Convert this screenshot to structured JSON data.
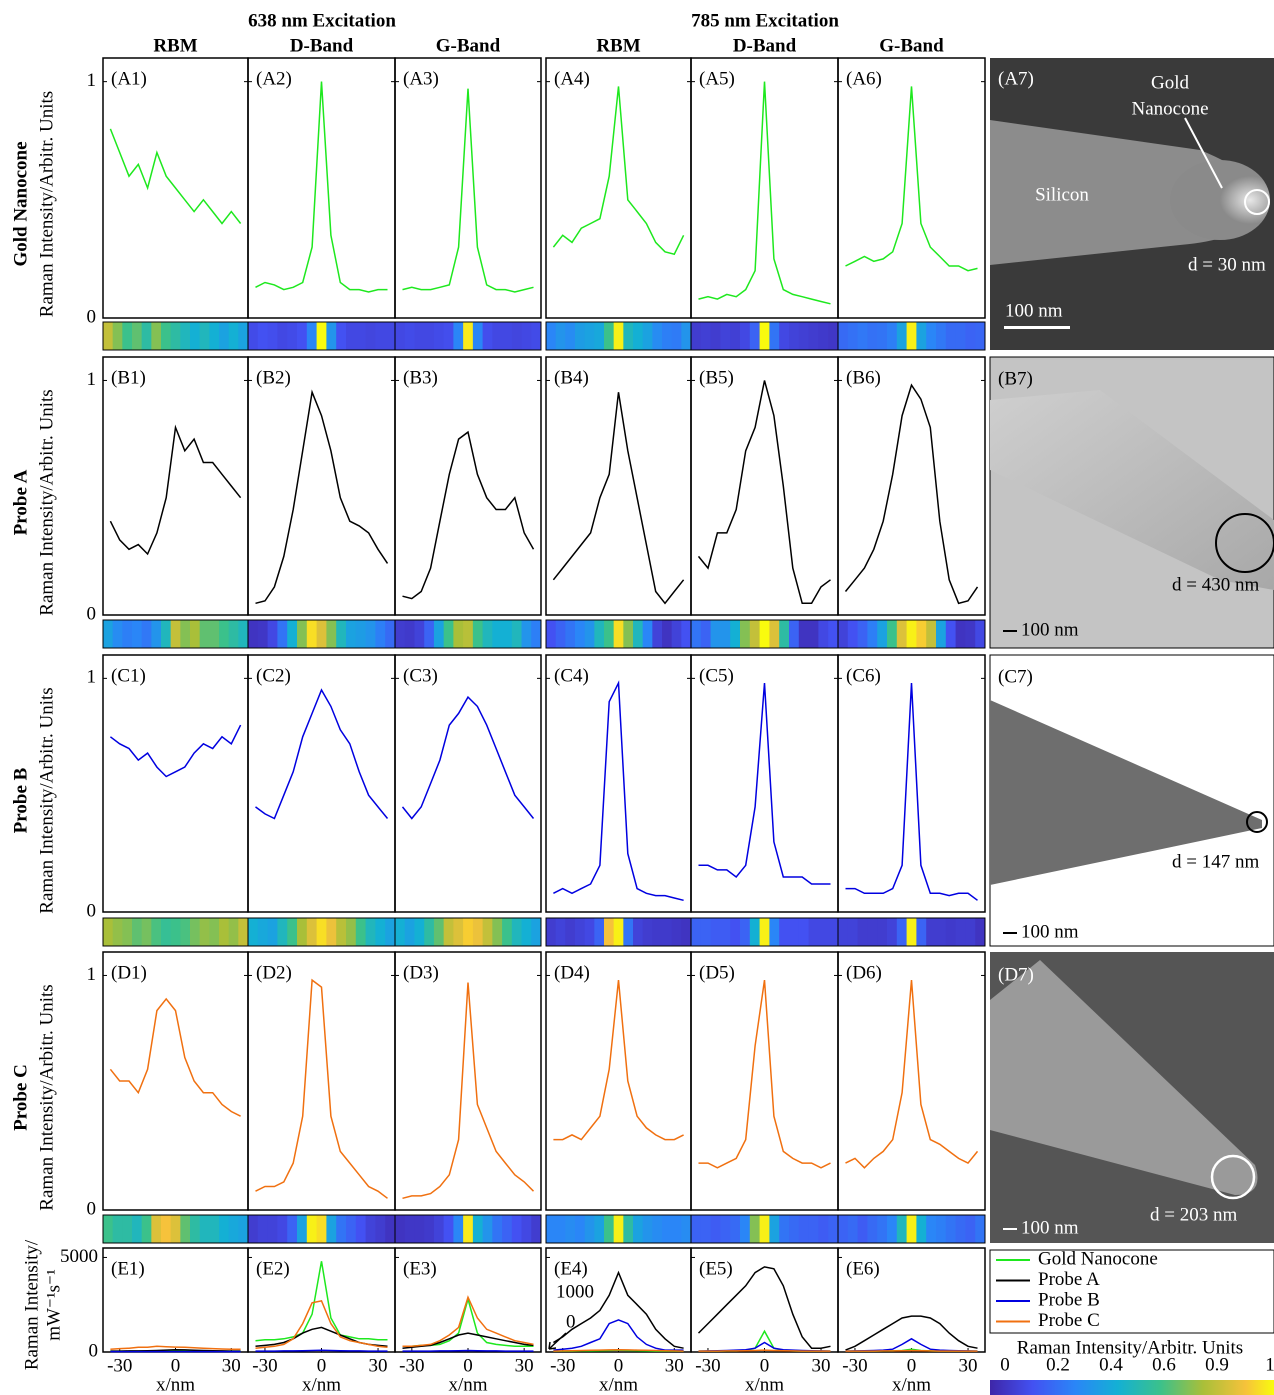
{
  "chart_data": {
    "type": "line",
    "group_titles": [
      "638 nm Excitation",
      "785 nm Excitation"
    ],
    "column_titles": [
      "RBM",
      "D-Band",
      "G-Band",
      "RBM",
      "D-Band",
      "G-Band"
    ],
    "y_label": "Raman Intensity/Arbitr. Units",
    "x_label": "x/nm",
    "x": [
      -35,
      -30,
      -25,
      -20,
      -15,
      -10,
      -5,
      0,
      5,
      10,
      15,
      20,
      25,
      30,
      35
    ],
    "xlim": [
      -39,
      39
    ],
    "xticks": [
      -30,
      0,
      30
    ],
    "ylim": [
      0,
      1.1
    ],
    "yticks": [
      0,
      1
    ],
    "rows": [
      {
        "name": "Gold  Nanocone",
        "color": "#1ee81e",
        "panels": [
          {
            "label": "(A1)",
            "values": [
              0.8,
              0.7,
              0.6,
              0.65,
              0.55,
              0.7,
              0.6,
              0.55,
              0.5,
              0.45,
              0.5,
              0.45,
              0.4,
              0.45,
              0.4
            ]
          },
          {
            "label": "(A2)",
            "values": [
              0.13,
              0.15,
              0.14,
              0.12,
              0.13,
              0.15,
              0.3,
              1.0,
              0.35,
              0.15,
              0.12,
              0.12,
              0.11,
              0.12,
              0.12
            ]
          },
          {
            "label": "(A3)",
            "values": [
              0.12,
              0.13,
              0.12,
              0.12,
              0.13,
              0.14,
              0.3,
              0.97,
              0.3,
              0.14,
              0.12,
              0.12,
              0.11,
              0.12,
              0.13
            ]
          },
          {
            "label": "(A4)",
            "values": [
              0.3,
              0.35,
              0.32,
              0.38,
              0.4,
              0.42,
              0.6,
              0.98,
              0.5,
              0.45,
              0.4,
              0.32,
              0.28,
              0.27,
              0.35
            ]
          },
          {
            "label": "(A5)",
            "values": [
              0.08,
              0.09,
              0.08,
              0.1,
              0.09,
              0.12,
              0.2,
              1.0,
              0.25,
              0.12,
              0.1,
              0.09,
              0.08,
              0.07,
              0.06
            ]
          },
          {
            "label": "(A6)",
            "values": [
              0.22,
              0.24,
              0.26,
              0.24,
              0.25,
              0.28,
              0.4,
              0.98,
              0.4,
              0.3,
              0.26,
              0.22,
              0.22,
              0.2,
              0.21
            ]
          }
        ],
        "image": {
          "label": "(A7)",
          "annotations": [
            "Gold",
            "Nanocone",
            "Silicon",
            "d = 30 nm"
          ],
          "scale": "100 nm"
        }
      },
      {
        "name": "Probe A",
        "color": "#000000",
        "panels": [
          {
            "label": "(B1)",
            "values": [
              0.4,
              0.32,
              0.28,
              0.3,
              0.26,
              0.35,
              0.5,
              0.8,
              0.7,
              0.75,
              0.65,
              0.65,
              0.6,
              0.55,
              0.5
            ]
          },
          {
            "label": "(B2)",
            "values": [
              0.05,
              0.06,
              0.12,
              0.25,
              0.45,
              0.7,
              0.95,
              0.85,
              0.7,
              0.5,
              0.4,
              0.38,
              0.35,
              0.28,
              0.22
            ]
          },
          {
            "label": "(B3)",
            "values": [
              0.08,
              0.07,
              0.1,
              0.2,
              0.4,
              0.6,
              0.75,
              0.78,
              0.6,
              0.5,
              0.45,
              0.45,
              0.5,
              0.35,
              0.28
            ]
          },
          {
            "label": "(B4)",
            "values": [
              0.15,
              0.2,
              0.25,
              0.3,
              0.35,
              0.5,
              0.6,
              0.95,
              0.7,
              0.5,
              0.3,
              0.1,
              0.05,
              0.1,
              0.15
            ]
          },
          {
            "label": "(B5)",
            "values": [
              0.25,
              0.2,
              0.35,
              0.35,
              0.45,
              0.7,
              0.8,
              1.0,
              0.85,
              0.55,
              0.2,
              0.05,
              0.05,
              0.12,
              0.15
            ]
          },
          {
            "label": "(B6)",
            "values": [
              0.1,
              0.15,
              0.2,
              0.28,
              0.4,
              0.6,
              0.85,
              0.98,
              0.92,
              0.8,
              0.4,
              0.15,
              0.05,
              0.06,
              0.12
            ]
          }
        ],
        "image": {
          "label": "(B7)",
          "annotations": [
            "d = 430 nm"
          ],
          "scale": "100 nm"
        }
      },
      {
        "name": "Probe B",
        "color": "#0000e0",
        "panels": [
          {
            "label": "(C1)",
            "values": [
              0.75,
              0.72,
              0.7,
              0.65,
              0.68,
              0.62,
              0.58,
              0.6,
              0.62,
              0.68,
              0.72,
              0.7,
              0.75,
              0.72,
              0.8
            ]
          },
          {
            "label": "(C2)",
            "values": [
              0.45,
              0.42,
              0.4,
              0.5,
              0.6,
              0.75,
              0.85,
              0.95,
              0.88,
              0.78,
              0.72,
              0.6,
              0.5,
              0.45,
              0.4
            ]
          },
          {
            "label": "(C3)",
            "values": [
              0.45,
              0.4,
              0.45,
              0.55,
              0.65,
              0.8,
              0.85,
              0.92,
              0.88,
              0.8,
              0.7,
              0.6,
              0.5,
              0.45,
              0.4
            ]
          },
          {
            "label": "(C4)",
            "values": [
              0.08,
              0.1,
              0.08,
              0.1,
              0.12,
              0.2,
              0.9,
              0.98,
              0.25,
              0.1,
              0.08,
              0.07,
              0.07,
              0.06,
              0.05
            ]
          },
          {
            "label": "(C5)",
            "values": [
              0.2,
              0.2,
              0.18,
              0.18,
              0.15,
              0.2,
              0.45,
              0.98,
              0.3,
              0.15,
              0.15,
              0.15,
              0.12,
              0.12,
              0.12
            ]
          },
          {
            "label": "(C6)",
            "values": [
              0.1,
              0.1,
              0.08,
              0.08,
              0.08,
              0.1,
              0.2,
              0.98,
              0.2,
              0.08,
              0.08,
              0.07,
              0.08,
              0.08,
              0.05
            ]
          }
        ],
        "image": {
          "label": "(C7)",
          "annotations": [
            "d = 147 nm"
          ],
          "scale": "100 nm"
        }
      },
      {
        "name": "Probe C",
        "color": "#f07010",
        "panels": [
          {
            "label": "(D1)",
            "values": [
              0.6,
              0.55,
              0.55,
              0.5,
              0.6,
              0.85,
              0.9,
              0.85,
              0.65,
              0.55,
              0.5,
              0.5,
              0.45,
              0.42,
              0.4
            ]
          },
          {
            "label": "(D2)",
            "values": [
              0.08,
              0.1,
              0.1,
              0.12,
              0.2,
              0.4,
              0.98,
              0.95,
              0.4,
              0.25,
              0.2,
              0.15,
              0.1,
              0.08,
              0.05
            ]
          },
          {
            "label": "(D3)",
            "values": [
              0.05,
              0.06,
              0.06,
              0.07,
              0.1,
              0.15,
              0.3,
              0.97,
              0.45,
              0.35,
              0.25,
              0.2,
              0.15,
              0.12,
              0.08
            ]
          },
          {
            "label": "(D4)",
            "values": [
              0.3,
              0.3,
              0.32,
              0.3,
              0.35,
              0.4,
              0.6,
              0.98,
              0.55,
              0.4,
              0.35,
              0.32,
              0.3,
              0.3,
              0.32
            ]
          },
          {
            "label": "(D5)",
            "values": [
              0.2,
              0.2,
              0.18,
              0.2,
              0.22,
              0.3,
              0.7,
              0.98,
              0.4,
              0.25,
              0.22,
              0.2,
              0.2,
              0.18,
              0.2
            ]
          },
          {
            "label": "(D6)",
            "values": [
              0.2,
              0.22,
              0.18,
              0.22,
              0.25,
              0.3,
              0.5,
              0.98,
              0.45,
              0.3,
              0.28,
              0.25,
              0.22,
              0.2,
              0.25
            ]
          }
        ],
        "image": {
          "label": "(D7)",
          "annotations": [
            "d = 203 nm"
          ],
          "scale": "100 nm"
        }
      }
    ],
    "absolute": {
      "y_label": [
        "Raman Intensity/",
        "mW⁻¹s⁻¹"
      ],
      "ylim": [
        0,
        5500
      ],
      "yticks": [
        0,
        5000
      ],
      "legend": [
        {
          "name": "Gold Nanocone",
          "color": "#1ee81e"
        },
        {
          "name": "Probe A",
          "color": "#000000"
        },
        {
          "name": "Probe B",
          "color": "#0000e0"
        },
        {
          "name": "Probe C",
          "color": "#f07010"
        }
      ],
      "inset_labels": [
        "1000",
        "0"
      ],
      "panels": [
        {
          "label": "(E1)",
          "values": [
            [
              50,
              50,
              50,
              50,
              50,
              50,
              60,
              70,
              60,
              50,
              50,
              50,
              50,
              50,
              50
            ],
            [
              50,
              50,
              60,
              60,
              70,
              80,
              100,
              120,
              110,
              90,
              80,
              70,
              60,
              50,
              50
            ],
            [
              20,
              20,
              20,
              20,
              20,
              20,
              20,
              20,
              20,
              20,
              20,
              20,
              20,
              20,
              20
            ],
            [
              150,
              180,
              200,
              250,
              250,
              300,
              280,
              260,
              250,
              230,
              200,
              180,
              160,
              150,
              150
            ]
          ]
        },
        {
          "label": "(E2)",
          "values": [
            [
              600,
              650,
              650,
              700,
              800,
              1000,
              2000,
              4800,
              1800,
              900,
              800,
              700,
              700,
              650,
              650
            ],
            [
              300,
              350,
              400,
              500,
              700,
              1000,
              1200,
              1300,
              1100,
              900,
              700,
              500,
              400,
              350,
              300
            ],
            [
              50,
              50,
              50,
              60,
              60,
              70,
              80,
              90,
              80,
              70,
              60,
              60,
              50,
              50,
              50
            ],
            [
              200,
              250,
              300,
              400,
              700,
              1500,
              2600,
              2700,
              1500,
              800,
              600,
              500,
              400,
              300,
              250
            ]
          ]
        },
        {
          "label": "(E3)",
          "values": [
            [
              300,
              300,
              350,
              350,
              400,
              600,
              1000,
              2800,
              1000,
              500,
              400,
              350,
              300,
              300,
              300
            ],
            [
              200,
              250,
              300,
              350,
              500,
              700,
              900,
              1000,
              900,
              800,
              700,
              600,
              500,
              400,
              350
            ],
            [
              50,
              50,
              50,
              50,
              60,
              60,
              70,
              80,
              70,
              60,
              60,
              50,
              50,
              50,
              50
            ],
            [
              300,
              300,
              350,
              400,
              600,
              900,
              1300,
              2900,
              1800,
              1200,
              1000,
              800,
              600,
              500,
              400
            ]
          ]
        },
        {
          "label": "(E4)",
          "values": [
            [
              50,
              50,
              50,
              60,
              60,
              70,
              80,
              100,
              80,
              70,
              60,
              50,
              50,
              50,
              50
            ],
            [
              500,
              800,
              1200,
              1500,
              1800,
              2200,
              3000,
              4200,
              3000,
              2500,
              2000,
              1200,
              700,
              300,
              200
            ],
            [
              100,
              150,
              200,
              300,
              500,
              700,
              1500,
              1700,
              1500,
              800,
              400,
              200,
              100,
              100,
              100
            ],
            [
              50,
              60,
              70,
              80,
              90,
              100,
              110,
              120,
              110,
              100,
              90,
              80,
              70,
              60,
              50
            ]
          ]
        },
        {
          "label": "(E5)",
          "values": [
            [
              50,
              50,
              50,
              60,
              60,
              80,
              200,
              1100,
              200,
              80,
              60,
              50,
              50,
              50,
              50
            ],
            [
              1000,
              1500,
              2000,
              2500,
              3000,
              3500,
              4200,
              4500,
              4400,
              3500,
              2000,
              800,
              200,
              200,
              300
            ],
            [
              50,
              60,
              70,
              80,
              100,
              120,
              200,
              500,
              200,
              120,
              100,
              80,
              70,
              60,
              50
            ],
            [
              50,
              50,
              50,
              60,
              60,
              70,
              80,
              100,
              80,
              70,
              60,
              50,
              50,
              50,
              50
            ]
          ]
        },
        {
          "label": "(E6)",
          "values": [
            [
              50,
              50,
              50,
              50,
              60,
              60,
              80,
              150,
              80,
              60,
              50,
              50,
              50,
              50,
              50
            ],
            [
              100,
              300,
              600,
              900,
              1200,
              1500,
              1800,
              1900,
              1900,
              1800,
              1500,
              1000,
              600,
              300,
              200
            ],
            [
              50,
              60,
              70,
              80,
              100,
              150,
              400,
              700,
              400,
              150,
              100,
              80,
              70,
              60,
              50
            ],
            [
              50,
              50,
              50,
              50,
              60,
              60,
              70,
              80,
              70,
              60,
              50,
              50,
              50,
              50,
              50
            ]
          ]
        }
      ]
    },
    "colorbar": {
      "title": "Raman Intensity/Arbitr. Units",
      "ticks": [
        0,
        0.2,
        0.4,
        0.6,
        0.9,
        1
      ]
    }
  }
}
